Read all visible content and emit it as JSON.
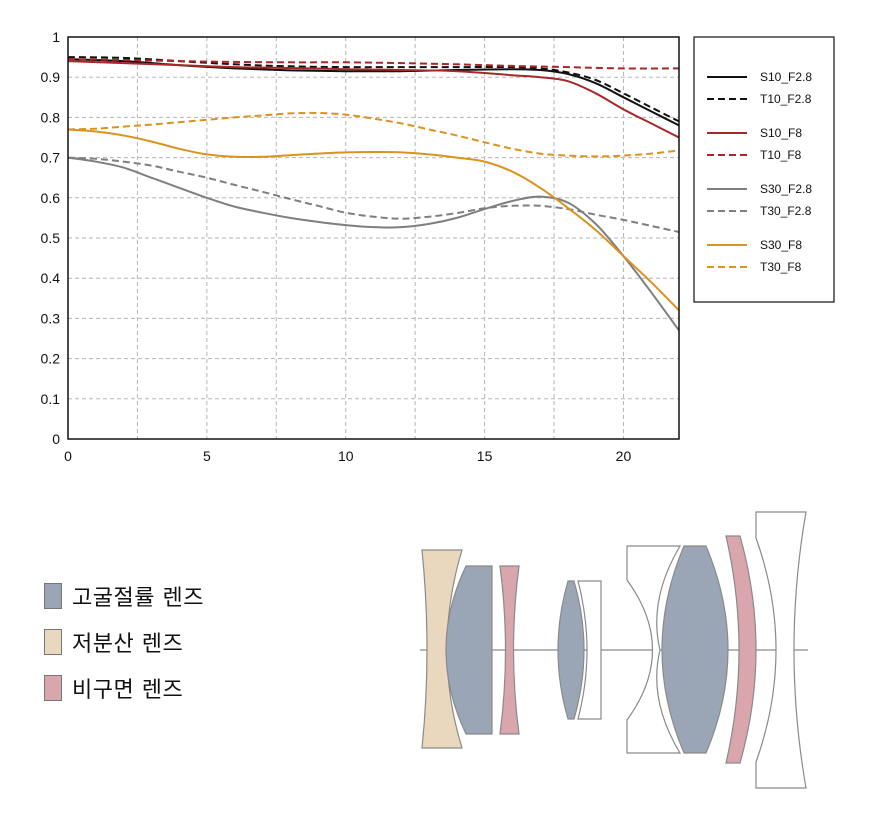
{
  "chart_data": {
    "type": "line",
    "title": "",
    "xlabel": "",
    "ylabel": "",
    "xlim": [
      0,
      22
    ],
    "ylim": [
      0,
      1
    ],
    "xticks": [
      0,
      5,
      10,
      15,
      20
    ],
    "yticks": [
      0,
      0.1,
      0.2,
      0.3,
      0.4,
      0.5,
      0.6,
      0.7,
      0.8,
      0.9,
      1
    ],
    "grid": true,
    "legend_position": "right",
    "series": [
      {
        "name": "S10_F2.8",
        "color": "#111111",
        "dash": false,
        "x": [
          0,
          2,
          4,
          6,
          8,
          10,
          12,
          14,
          16,
          17,
          18,
          19,
          20,
          21,
          22
        ],
        "y": [
          0.945,
          0.94,
          0.93,
          0.922,
          0.917,
          0.915,
          0.915,
          0.918,
          0.92,
          0.918,
          0.908,
          0.885,
          0.85,
          0.815,
          0.78
        ]
      },
      {
        "name": "T10_F2.8",
        "color": "#111111",
        "dash": true,
        "x": [
          0,
          2,
          4,
          6,
          8,
          10,
          12,
          14,
          16,
          17,
          18,
          19,
          20,
          21,
          22
        ],
        "y": [
          0.95,
          0.948,
          0.94,
          0.932,
          0.927,
          0.925,
          0.925,
          0.925,
          0.925,
          0.922,
          0.912,
          0.893,
          0.86,
          0.825,
          0.79
        ]
      },
      {
        "name": "S10_F8",
        "color": "#a8282a",
        "dash": false,
        "x": [
          0,
          2,
          4,
          6,
          8,
          10,
          12,
          14,
          16,
          17,
          18,
          19,
          20,
          21,
          22
        ],
        "y": [
          0.94,
          0.935,
          0.93,
          0.925,
          0.923,
          0.92,
          0.918,
          0.915,
          0.905,
          0.9,
          0.89,
          0.86,
          0.82,
          0.785,
          0.75
        ]
      },
      {
        "name": "T10_F8",
        "color": "#a8282a",
        "dash": true,
        "x": [
          0,
          2,
          4,
          6,
          8,
          10,
          12,
          14,
          16,
          18,
          20,
          22
        ],
        "y": [
          0.945,
          0.943,
          0.94,
          0.938,
          0.937,
          0.937,
          0.935,
          0.932,
          0.928,
          0.925,
          0.922,
          0.922
        ]
      },
      {
        "name": "S30_F2.8",
        "color": "#7f7f7f",
        "dash": false,
        "x": [
          0,
          1,
          2,
          3,
          4,
          5,
          6,
          7,
          8,
          9,
          10,
          11,
          12,
          13,
          14,
          15,
          16,
          17,
          18,
          19,
          20,
          21,
          22
        ],
        "y": [
          0.7,
          0.69,
          0.675,
          0.65,
          0.625,
          0.6,
          0.578,
          0.563,
          0.55,
          0.54,
          0.532,
          0.527,
          0.527,
          0.535,
          0.55,
          0.572,
          0.592,
          0.603,
          0.588,
          0.535,
          0.455,
          0.365,
          0.27
        ]
      },
      {
        "name": "T30_F2.8",
        "color": "#7f7f7f",
        "dash": true,
        "x": [
          0,
          1,
          2,
          3,
          4,
          5,
          6,
          7,
          8,
          9,
          10,
          11,
          12,
          13,
          14,
          15,
          16,
          17,
          18,
          19,
          20,
          21,
          22
        ],
        "y": [
          0.7,
          0.697,
          0.69,
          0.68,
          0.665,
          0.65,
          0.632,
          0.615,
          0.597,
          0.58,
          0.563,
          0.553,
          0.548,
          0.553,
          0.562,
          0.574,
          0.58,
          0.58,
          0.572,
          0.558,
          0.545,
          0.53,
          0.515
        ]
      },
      {
        "name": "S30_F8",
        "color": "#dc921f",
        "dash": false,
        "x": [
          0,
          1,
          2,
          3,
          4,
          5,
          6,
          7,
          8,
          9,
          10,
          11,
          12,
          13,
          14,
          15,
          16,
          17,
          18,
          19,
          20,
          21,
          22
        ],
        "y": [
          0.77,
          0.765,
          0.755,
          0.74,
          0.722,
          0.708,
          0.702,
          0.702,
          0.706,
          0.71,
          0.713,
          0.714,
          0.713,
          0.708,
          0.7,
          0.69,
          0.665,
          0.625,
          0.575,
          0.52,
          0.455,
          0.39,
          0.32
        ]
      },
      {
        "name": "T30_F8",
        "color": "#dc921f",
        "dash": true,
        "x": [
          0,
          1,
          2,
          3,
          4,
          5,
          6,
          7,
          8,
          9,
          10,
          11,
          12,
          13,
          14,
          15,
          16,
          17,
          18,
          19,
          20,
          21,
          22
        ],
        "y": [
          0.77,
          0.772,
          0.777,
          0.782,
          0.788,
          0.794,
          0.8,
          0.805,
          0.81,
          0.811,
          0.807,
          0.797,
          0.785,
          0.77,
          0.755,
          0.738,
          0.722,
          0.71,
          0.705,
          0.703,
          0.705,
          0.71,
          0.718
        ]
      }
    ]
  },
  "lens_key": {
    "items": [
      {
        "label": "고굴절률 렌즈",
        "color": "#9aa6b6"
      },
      {
        "label": "저분산 렌즈",
        "color": "#e9d8bd"
      },
      {
        "label": "비구면 렌즈",
        "color": "#d9a6ae"
      }
    ]
  }
}
